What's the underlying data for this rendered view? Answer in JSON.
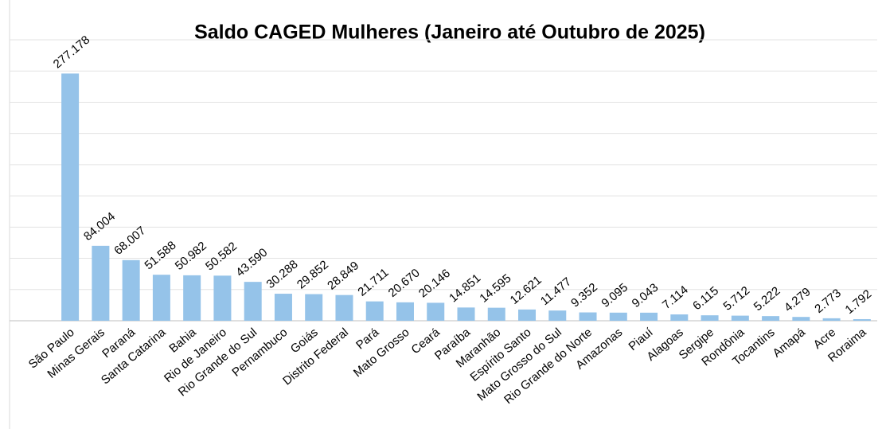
{
  "chart_data": {
    "type": "bar",
    "title": "Saldo CAGED Mulheres (Janeiro até Outubro de 2025)",
    "categories": [
      "São Paulo",
      "Minas Gerais",
      "Paraná",
      "Santa Catarina",
      "Bahia",
      "Rio de Janeiro",
      "Rio Grande do Sul",
      "Pernambuco",
      "Goiás",
      "Distrito Federal",
      "Pará",
      "Mato Grosso",
      "Ceará",
      "Paraíba",
      "Maranhão",
      "Espírito Santo",
      "Mato Grosso do Sul",
      "Rio Grande do Norte",
      "Amazonas",
      "Piauí",
      "Alagoas",
      "Sergipe",
      "Rondônia",
      "Tocantins",
      "Amapá",
      "Acre",
      "Roraima"
    ],
    "values": [
      277178,
      84004,
      68007,
      51588,
      50982,
      50582,
      43590,
      30288,
      29852,
      28849,
      21711,
      20670,
      20146,
      14851,
      14595,
      12621,
      11477,
      9352,
      9095,
      9043,
      7114,
      6115,
      5712,
      5222,
      4279,
      2773,
      1792
    ],
    "value_labels": [
      "277.178",
      "84.004",
      "68.007",
      "51.588",
      "50.982",
      "50.582",
      "43.590",
      "30.288",
      "29.852",
      "28.849",
      "21.711",
      "20.670",
      "20.146",
      "14.851",
      "14.595",
      "12.621",
      "11.477",
      "9.352",
      "9.095",
      "9.043",
      "7.114",
      "6.115",
      "5.712",
      "5.222",
      "4.279",
      "2.773",
      "1.792"
    ],
    "color": "#95c3e9",
    "highlight_category": "Paraná",
    "highlight_color": "#ff0000",
    "ylim": [
      0,
      315000
    ],
    "yticks": [
      0,
      35000,
      70000,
      105000,
      140000,
      175000,
      210000,
      245000,
      280000,
      315000
    ],
    "show_ytick_labels": false,
    "grid": true
  }
}
